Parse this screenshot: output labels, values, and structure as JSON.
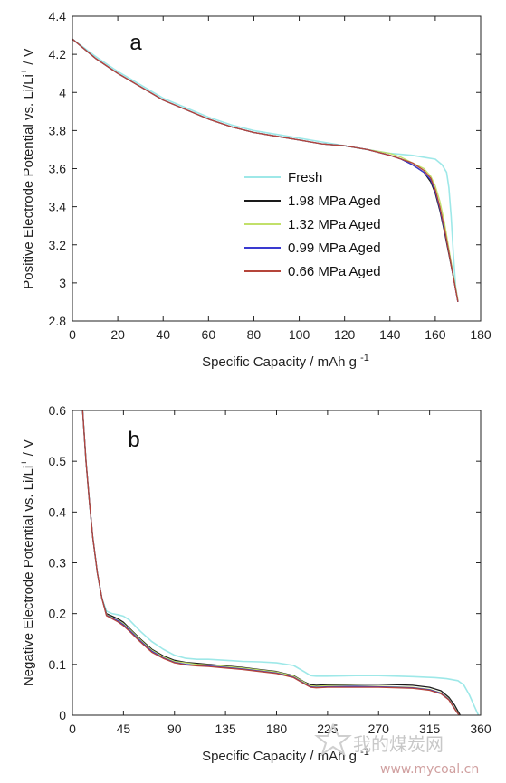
{
  "chart_data": [
    {
      "type": "line",
      "panel_label": "a",
      "xlabel": "Specific Capacity / mAh g",
      "xlabel_sup": "-1",
      "ylabel": "Positive Electrode Potential vs. Li/Li",
      "ylabel_sup": "+",
      "ylabel_tail": " / V",
      "xlim": [
        0,
        180
      ],
      "ylim": [
        2.8,
        4.4
      ],
      "xticks": [
        0,
        20,
        40,
        60,
        80,
        100,
        120,
        140,
        160,
        180
      ],
      "xtick_labels": [
        "0",
        "20",
        "40",
        "60",
        "80",
        "100",
        "120",
        "140",
        "160",
        "180"
      ],
      "yticks": [
        2.8,
        3.0,
        3.2,
        3.4,
        3.6,
        3.8,
        4.0,
        4.2,
        4.4
      ],
      "ytick_labels": [
        "2.8",
        "3",
        "3.2",
        "3.4",
        "3.6",
        "3.8",
        "4",
        "4.2",
        "4.4"
      ],
      "legend_position": "center-right",
      "series": [
        {
          "name": "Fresh",
          "color": "#9ee8e8",
          "x": [
            0,
            10,
            20,
            30,
            40,
            50,
            60,
            70,
            80,
            90,
            100,
            110,
            120,
            130,
            140,
            150,
            155,
            160,
            163,
            165,
            166,
            167,
            168,
            169,
            170
          ],
          "y": [
            4.28,
            4.19,
            4.11,
            4.04,
            3.97,
            3.92,
            3.87,
            3.83,
            3.8,
            3.78,
            3.76,
            3.74,
            3.72,
            3.7,
            3.68,
            3.67,
            3.66,
            3.65,
            3.62,
            3.58,
            3.5,
            3.35,
            3.15,
            2.98,
            2.9
          ]
        },
        {
          "name": "1.98 MPa Aged",
          "color": "#1a1a1a",
          "x": [
            0,
            10,
            20,
            30,
            40,
            50,
            60,
            70,
            80,
            90,
            100,
            110,
            120,
            130,
            140,
            145,
            150,
            155,
            158,
            160,
            162,
            164,
            166,
            168,
            170
          ],
          "y": [
            4.28,
            4.18,
            4.1,
            4.03,
            3.96,
            3.91,
            3.86,
            3.82,
            3.79,
            3.77,
            3.75,
            3.73,
            3.72,
            3.7,
            3.67,
            3.65,
            3.62,
            3.58,
            3.53,
            3.47,
            3.38,
            3.27,
            3.15,
            3.03,
            2.9
          ]
        },
        {
          "name": "1.32 MPa Aged",
          "color": "#c2e06a",
          "x": [
            0,
            10,
            20,
            30,
            40,
            50,
            60,
            70,
            80,
            90,
            100,
            110,
            120,
            130,
            140,
            145,
            150,
            155,
            158,
            160,
            162,
            164,
            166,
            168,
            170
          ],
          "y": [
            4.28,
            4.18,
            4.1,
            4.03,
            3.96,
            3.91,
            3.86,
            3.82,
            3.79,
            3.77,
            3.75,
            3.73,
            3.72,
            3.7,
            3.68,
            3.66,
            3.63,
            3.6,
            3.56,
            3.51,
            3.43,
            3.32,
            3.18,
            3.04,
            2.91
          ]
        },
        {
          "name": "0.99 MPa Aged",
          "color": "#3a3ad0",
          "x": [
            0,
            10,
            20,
            30,
            40,
            50,
            60,
            70,
            80,
            90,
            100,
            110,
            120,
            130,
            140,
            145,
            150,
            155,
            158,
            160,
            162,
            164,
            166,
            168,
            170
          ],
          "y": [
            4.28,
            4.18,
            4.1,
            4.03,
            3.96,
            3.91,
            3.86,
            3.82,
            3.79,
            3.77,
            3.75,
            3.73,
            3.72,
            3.7,
            3.67,
            3.65,
            3.62,
            3.58,
            3.54,
            3.48,
            3.39,
            3.28,
            3.16,
            3.03,
            2.9
          ]
        },
        {
          "name": "0.66 MPa Aged",
          "color": "#b5453a",
          "x": [
            0,
            10,
            20,
            30,
            40,
            50,
            60,
            70,
            80,
            90,
            100,
            110,
            120,
            130,
            140,
            145,
            150,
            155,
            158,
            160,
            162,
            164,
            166,
            168,
            170
          ],
          "y": [
            4.28,
            4.18,
            4.1,
            4.03,
            3.96,
            3.91,
            3.86,
            3.82,
            3.79,
            3.77,
            3.75,
            3.73,
            3.72,
            3.7,
            3.67,
            3.65,
            3.63,
            3.59,
            3.55,
            3.49,
            3.4,
            3.29,
            3.16,
            3.03,
            2.9
          ]
        }
      ]
    },
    {
      "type": "line",
      "panel_label": "b",
      "xlabel": "Specific Capacity / mAh g",
      "xlabel_sup": "-1",
      "ylabel": "Negative Electrode Potential vs. Li/Li",
      "ylabel_sup": "+",
      "ylabel_tail": " / V",
      "xlim": [
        0,
        360
      ],
      "ylim": [
        0,
        0.6
      ],
      "xticks": [
        0,
        45,
        90,
        135,
        180,
        225,
        270,
        315,
        360
      ],
      "xtick_labels": [
        "0",
        "45",
        "90",
        "135",
        "180",
        "225",
        "270",
        "315",
        "360"
      ],
      "yticks": [
        0,
        0.1,
        0.2,
        0.3,
        0.4,
        0.5,
        0.6
      ],
      "ytick_labels": [
        "0",
        "0.1",
        "0.2",
        "0.3",
        "0.4",
        "0.5",
        "0.6"
      ],
      "series": [
        {
          "name": "Fresh",
          "color": "#9ee8e8",
          "x": [
            9,
            12,
            15,
            18,
            22,
            26,
            30,
            35,
            40,
            45,
            50,
            60,
            70,
            80,
            90,
            100,
            110,
            120,
            135,
            150,
            165,
            180,
            195,
            205,
            210,
            215,
            225,
            250,
            270,
            300,
            320,
            330,
            340,
            345,
            350,
            355,
            358
          ],
          "y": [
            0.6,
            0.5,
            0.42,
            0.35,
            0.28,
            0.23,
            0.205,
            0.2,
            0.198,
            0.195,
            0.188,
            0.165,
            0.145,
            0.13,
            0.118,
            0.112,
            0.11,
            0.11,
            0.108,
            0.106,
            0.105,
            0.103,
            0.098,
            0.085,
            0.078,
            0.077,
            0.077,
            0.078,
            0.078,
            0.076,
            0.074,
            0.072,
            0.068,
            0.06,
            0.04,
            0.015,
            0.0
          ]
        },
        {
          "name": "1.98 MPa Aged",
          "color": "#1a1a1a",
          "x": [
            9,
            12,
            15,
            18,
            22,
            26,
            30,
            35,
            40,
            45,
            50,
            60,
            70,
            80,
            90,
            100,
            110,
            120,
            135,
            150,
            165,
            180,
            195,
            205,
            210,
            215,
            225,
            250,
            270,
            300,
            315,
            325,
            332,
            337,
            340,
            342
          ],
          "y": [
            0.6,
            0.5,
            0.42,
            0.35,
            0.28,
            0.23,
            0.2,
            0.195,
            0.19,
            0.183,
            0.172,
            0.15,
            0.13,
            0.117,
            0.108,
            0.104,
            0.102,
            0.1,
            0.097,
            0.094,
            0.09,
            0.086,
            0.078,
            0.065,
            0.06,
            0.059,
            0.06,
            0.061,
            0.061,
            0.059,
            0.055,
            0.048,
            0.035,
            0.02,
            0.008,
            0.0
          ]
        },
        {
          "name": "1.32 MPa Aged",
          "color": "#c2e06a",
          "x": [
            9,
            12,
            15,
            18,
            22,
            26,
            30,
            35,
            40,
            45,
            50,
            60,
            70,
            80,
            90,
            100,
            110,
            120,
            135,
            150,
            165,
            180,
            195,
            205,
            210,
            215,
            225,
            250,
            270,
            300,
            315,
            325,
            332,
            336,
            339,
            341
          ],
          "y": [
            0.6,
            0.5,
            0.42,
            0.35,
            0.28,
            0.23,
            0.198,
            0.192,
            0.187,
            0.18,
            0.17,
            0.148,
            0.128,
            0.115,
            0.106,
            0.103,
            0.1,
            0.099,
            0.096,
            0.093,
            0.089,
            0.085,
            0.077,
            0.064,
            0.058,
            0.057,
            0.058,
            0.058,
            0.057,
            0.055,
            0.051,
            0.044,
            0.032,
            0.018,
            0.007,
            0.0
          ]
        },
        {
          "name": "0.99 MPa Aged",
          "color": "#3a3ad0",
          "x": [
            9,
            12,
            15,
            18,
            22,
            26,
            30,
            35,
            40,
            45,
            50,
            60,
            70,
            80,
            90,
            100,
            110,
            120,
            135,
            150,
            165,
            180,
            195,
            205,
            210,
            215,
            225,
            250,
            270,
            300,
            315,
            325,
            332,
            336,
            339,
            341
          ],
          "y": [
            0.6,
            0.5,
            0.42,
            0.35,
            0.28,
            0.23,
            0.197,
            0.191,
            0.186,
            0.178,
            0.168,
            0.146,
            0.126,
            0.113,
            0.104,
            0.1,
            0.098,
            0.097,
            0.094,
            0.091,
            0.087,
            0.083,
            0.075,
            0.062,
            0.056,
            0.055,
            0.056,
            0.057,
            0.056,
            0.054,
            0.05,
            0.043,
            0.031,
            0.017,
            0.006,
            0.0
          ]
        },
        {
          "name": "0.66 MPa Aged",
          "color": "#b5453a",
          "x": [
            9,
            12,
            15,
            18,
            22,
            26,
            30,
            35,
            40,
            45,
            50,
            60,
            70,
            80,
            90,
            100,
            110,
            120,
            135,
            150,
            165,
            180,
            195,
            205,
            210,
            215,
            225,
            250,
            270,
            300,
            315,
            325,
            332,
            336,
            339,
            341
          ],
          "y": [
            0.6,
            0.5,
            0.42,
            0.35,
            0.28,
            0.23,
            0.196,
            0.19,
            0.184,
            0.176,
            0.166,
            0.144,
            0.124,
            0.112,
            0.103,
            0.099,
            0.097,
            0.096,
            0.093,
            0.09,
            0.086,
            0.082,
            0.074,
            0.061,
            0.055,
            0.054,
            0.055,
            0.055,
            0.055,
            0.053,
            0.049,
            0.042,
            0.03,
            0.016,
            0.006,
            0.0
          ]
        }
      ]
    }
  ],
  "watermark": {
    "text_main": "我的煤炭网",
    "text_url": "www.mycoal.cn"
  }
}
